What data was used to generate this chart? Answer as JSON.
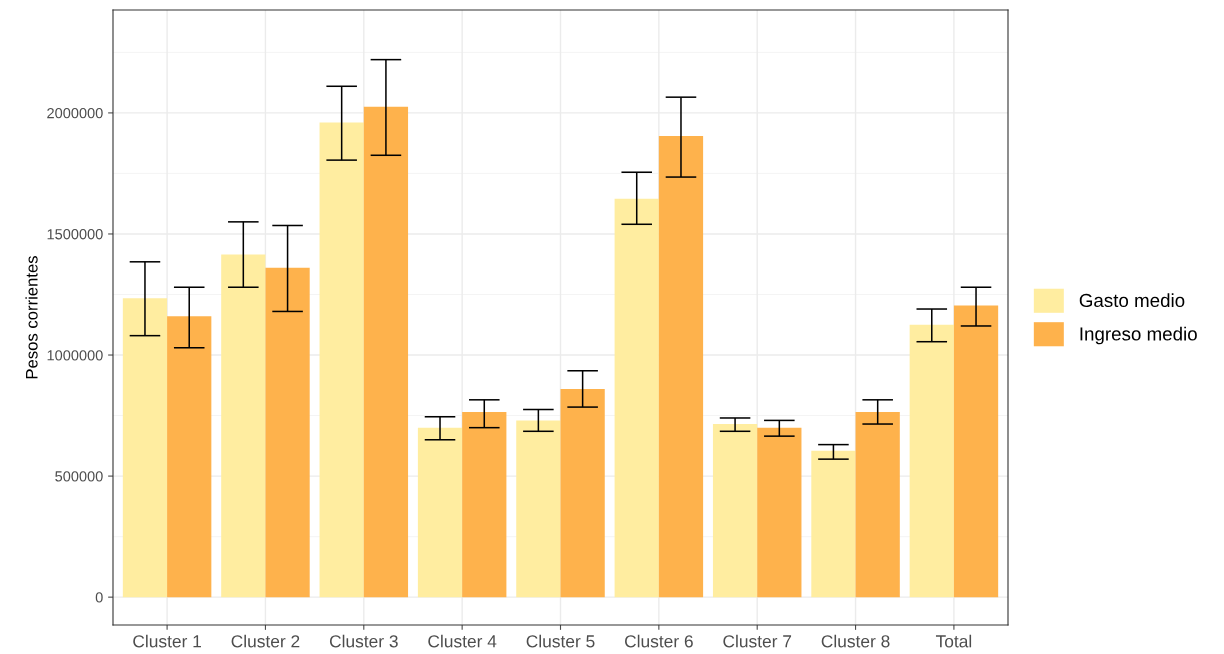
{
  "chart_data": {
    "type": "bar",
    "ylabel": "Pesos corrientes",
    "categories": [
      "Cluster 1",
      "Cluster 2",
      "Cluster 3",
      "Cluster 4",
      "Cluster 5",
      "Cluster 6",
      "Cluster 7",
      "Cluster 8",
      "Total"
    ],
    "series": [
      {
        "name": "Gasto medio",
        "color": "#ffeda0",
        "values": [
          1235000,
          1415000,
          1960000,
          700000,
          730000,
          1645000,
          715000,
          605000,
          1125000
        ],
        "errors": [
          [
            1080000,
            1385000
          ],
          [
            1280000,
            1550000
          ],
          [
            1805000,
            2110000
          ],
          [
            650000,
            745000
          ],
          [
            685000,
            775000
          ],
          [
            1540000,
            1755000
          ],
          [
            685000,
            740000
          ],
          [
            570000,
            630000
          ],
          [
            1055000,
            1190000
          ]
        ]
      },
      {
        "name": "Ingreso medio",
        "color": "#feb24c",
        "values": [
          1160000,
          1360000,
          2025000,
          765000,
          860000,
          1905000,
          700000,
          765000,
          1205000
        ],
        "errors": [
          [
            1030000,
            1280000
          ],
          [
            1180000,
            1535000
          ],
          [
            1825000,
            2220000
          ],
          [
            700000,
            815000
          ],
          [
            785000,
            935000
          ],
          [
            1735000,
            2065000
          ],
          [
            665000,
            730000
          ],
          [
            715000,
            815000
          ],
          [
            1120000,
            1280000
          ]
        ]
      }
    ],
    "ylim": [
      -115000,
      2425000
    ],
    "yticks": [
      0,
      500000,
      1000000,
      1500000,
      2000000
    ],
    "grid": true,
    "legend": "right"
  }
}
